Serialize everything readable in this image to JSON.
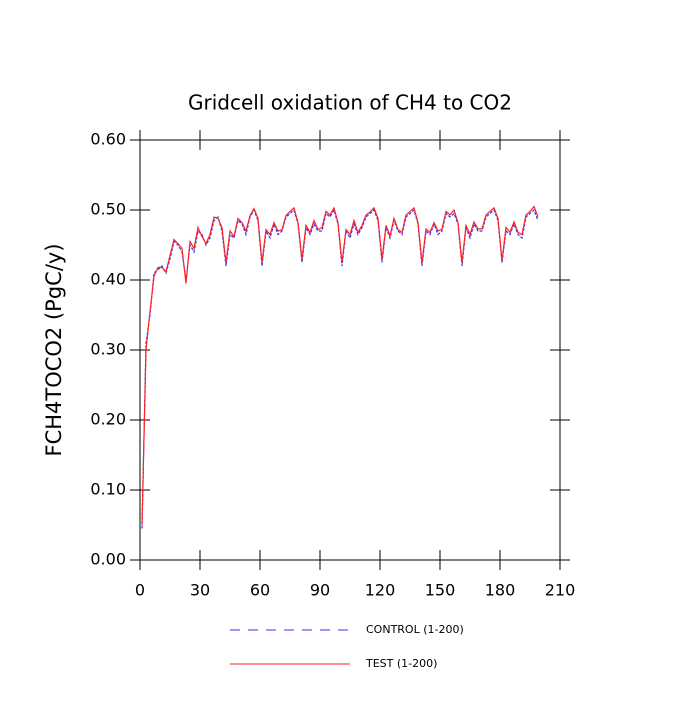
{
  "chart_data": {
    "type": "line",
    "title": "Gridcell oxidation of CH4 to CO2",
    "y_label": "FCH4TOCO2  (PgC/y)",
    "x": [
      1,
      3,
      5,
      7,
      9,
      11,
      13,
      15,
      17,
      19,
      21,
      23,
      25,
      27,
      29,
      31,
      33,
      35,
      37,
      39,
      41,
      43,
      45,
      47,
      49,
      51,
      53,
      55,
      57,
      59,
      61,
      63,
      65,
      67,
      69,
      71,
      73,
      75,
      77,
      79,
      81,
      83,
      85,
      87,
      89,
      91,
      93,
      95,
      97,
      99,
      101,
      103,
      105,
      107,
      109,
      111,
      113,
      115,
      117,
      119,
      121,
      123,
      125,
      127,
      129,
      131,
      133,
      135,
      137,
      139,
      141,
      143,
      145,
      147,
      149,
      151,
      153,
      155,
      157,
      159,
      161,
      163,
      165,
      167,
      169,
      171,
      173,
      175,
      177,
      179,
      181,
      183,
      185,
      187,
      189,
      191,
      193,
      195,
      197,
      199
    ],
    "series": [
      {
        "name": "CONTROL (1-200)",
        "color": "#3333ff",
        "line_style": "dashed",
        "values": [
          0.045,
          0.31,
          0.35,
          0.41,
          0.415,
          0.42,
          0.41,
          0.43,
          0.455,
          0.45,
          0.44,
          0.4,
          0.45,
          0.44,
          0.47,
          0.465,
          0.45,
          0.46,
          0.485,
          0.49,
          0.47,
          0.42,
          0.465,
          0.46,
          0.485,
          0.48,
          0.465,
          0.49,
          0.5,
          0.485,
          0.42,
          0.47,
          0.46,
          0.48,
          0.465,
          0.47,
          0.49,
          0.495,
          0.5,
          0.48,
          0.425,
          0.475,
          0.465,
          0.48,
          0.47,
          0.47,
          0.495,
          0.49,
          0.5,
          0.48,
          0.42,
          0.47,
          0.46,
          0.48,
          0.465,
          0.475,
          0.49,
          0.495,
          0.5,
          0.485,
          0.425,
          0.475,
          0.46,
          0.485,
          0.47,
          0.465,
          0.49,
          0.495,
          0.5,
          0.48,
          0.42,
          0.47,
          0.465,
          0.48,
          0.465,
          0.47,
          0.495,
          0.49,
          0.495,
          0.48,
          0.42,
          0.475,
          0.46,
          0.48,
          0.47,
          0.47,
          0.49,
          0.495,
          0.5,
          0.485,
          0.425,
          0.47,
          0.465,
          0.48,
          0.465,
          0.46,
          0.49,
          0.495,
          0.5,
          0.485
        ]
      },
      {
        "name": "TEST (1-200)",
        "color": "#ff2222",
        "line_style": "solid",
        "values": [
          0.05,
          0.3,
          0.355,
          0.405,
          0.418,
          0.418,
          0.412,
          0.435,
          0.458,
          0.452,
          0.445,
          0.395,
          0.455,
          0.445,
          0.475,
          0.462,
          0.452,
          0.465,
          0.49,
          0.488,
          0.475,
          0.425,
          0.47,
          0.462,
          0.488,
          0.482,
          0.47,
          0.492,
          0.502,
          0.488,
          0.425,
          0.472,
          0.465,
          0.482,
          0.47,
          0.472,
          0.492,
          0.498,
          0.503,
          0.482,
          0.43,
          0.478,
          0.468,
          0.485,
          0.472,
          0.475,
          0.498,
          0.493,
          0.503,
          0.482,
          0.425,
          0.472,
          0.465,
          0.485,
          0.468,
          0.478,
          0.493,
          0.497,
          0.503,
          0.488,
          0.43,
          0.478,
          0.463,
          0.488,
          0.472,
          0.468,
          0.493,
          0.498,
          0.503,
          0.482,
          0.425,
          0.473,
          0.468,
          0.482,
          0.47,
          0.473,
          0.498,
          0.493,
          0.5,
          0.482,
          0.425,
          0.478,
          0.465,
          0.483,
          0.473,
          0.473,
          0.493,
          0.498,
          0.503,
          0.488,
          0.428,
          0.475,
          0.468,
          0.483,
          0.468,
          0.465,
          0.493,
          0.498,
          0.505,
          0.49
        ]
      }
    ],
    "xlim": [
      0,
      210
    ],
    "xticks": [
      0,
      30,
      60,
      90,
      120,
      150,
      180,
      210
    ],
    "ylim": [
      0,
      0.6
    ],
    "yticks": [
      {
        "value": 0,
        "label": "0.00"
      },
      {
        "value": 0.1,
        "label": "0.10"
      },
      {
        "value": 0.2,
        "label": "0.20"
      },
      {
        "value": 0.3,
        "label": "0.30"
      },
      {
        "value": 0.4,
        "label": "0.40"
      },
      {
        "value": 0.5,
        "label": "0.50"
      },
      {
        "value": 0.6,
        "label": "0.60"
      }
    ]
  }
}
